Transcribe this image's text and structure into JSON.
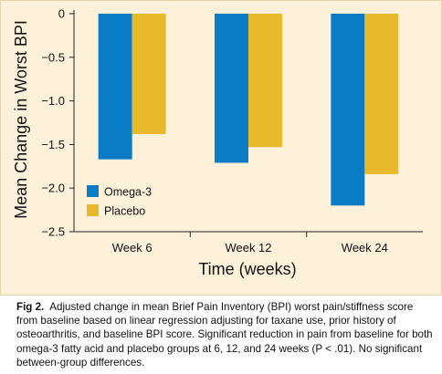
{
  "chart_data": {
    "type": "bar",
    "categories": [
      "Week 6",
      "Week 12",
      "Week 24"
    ],
    "series": [
      {
        "name": "Omega-3",
        "color": "#0a7cc6",
        "values": [
          -1.67,
          -1.71,
          -2.2
        ]
      },
      {
        "name": "Placebo",
        "color": "#e8b92b",
        "values": [
          -1.38,
          -1.53,
          -1.84
        ]
      }
    ],
    "xlabel": "Time (weeks)",
    "ylabel": "Mean Change in Worst BPI",
    "ylim": [
      -2.5,
      0
    ],
    "yticks": [
      "0",
      "−0.5",
      "−1.0",
      "−1.5",
      "−2.0",
      "−2.5"
    ],
    "ytick_values": [
      0,
      -0.5,
      -1.0,
      -1.5,
      -2.0,
      -2.5
    ],
    "grid": false,
    "legend_position": "bottom-left"
  },
  "caption": {
    "label": "Fig 2.",
    "text": "Adjusted change in mean Brief Pain Inventory (BPI) worst pain/stiffness score from baseline based on linear regression adjusting for taxane use, prior history of osteoarthritis, and baseline BPI score. Significant reduction in pain from baseline for both omega-3 fatty acid and placebo groups at 6, 12, and 24 weeks (P < .01). No significant between-group differences."
  }
}
